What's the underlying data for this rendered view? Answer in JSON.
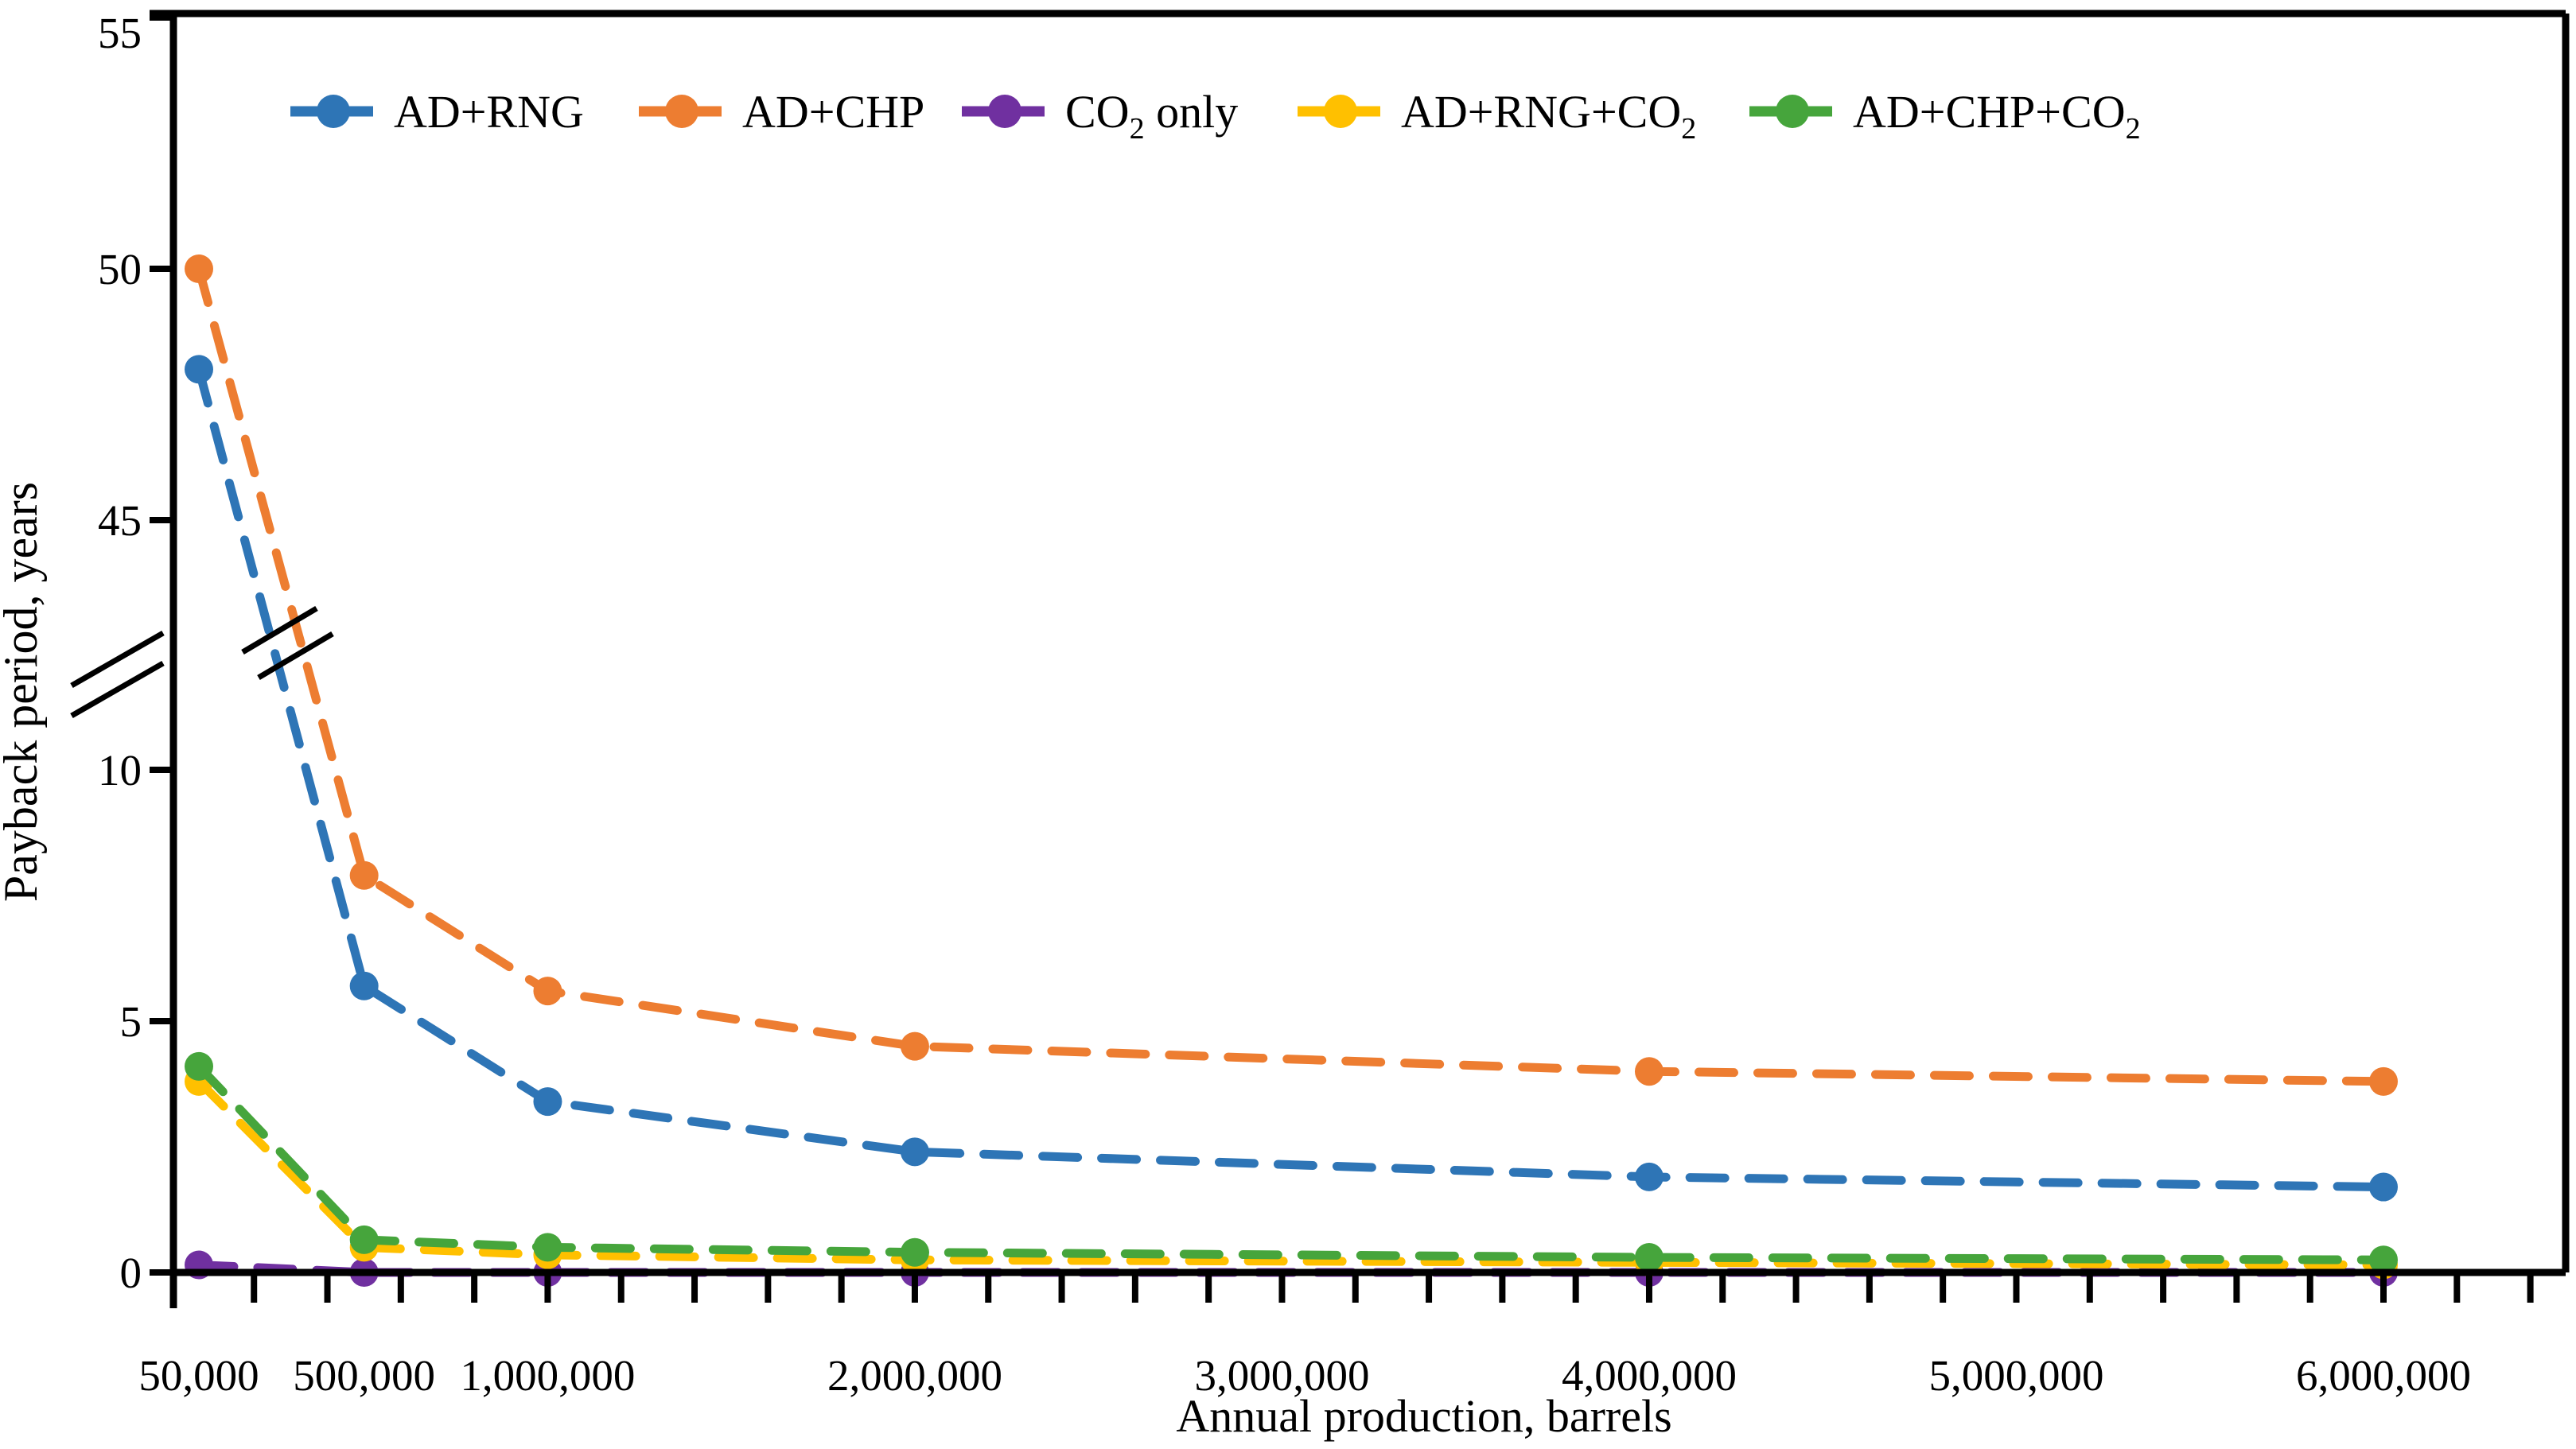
{
  "figure": {
    "background_color": "#ffffff",
    "axis_color": "#000000"
  },
  "chart_data": {
    "type": "line",
    "title": "",
    "xlabel": "Annual production,  barrels",
    "ylabel": "Payback period, years",
    "line_style": "dashed",
    "marker": "circle",
    "grid": false,
    "legend_position": "top",
    "x": [
      50000,
      500000,
      1000000,
      2000000,
      4000000,
      6000000
    ],
    "x_tick_labels": [
      {
        "value": 50000,
        "label": "50,000"
      },
      {
        "value": 500000,
        "label": "500,000"
      },
      {
        "value": 1000000,
        "label": "1,000,000"
      },
      {
        "value": 2000000,
        "label": "2,000,000"
      },
      {
        "value": 3000000,
        "label": "3,000,000"
      },
      {
        "value": 4000000,
        "label": "4,000,000"
      },
      {
        "value": 5000000,
        "label": "5,000,000"
      },
      {
        "value": 6000000,
        "label": "6,000,000"
      }
    ],
    "x_minor_tick_interval": 200000,
    "x_minor_tick_max": 6400000,
    "y_ticks": [
      0,
      5,
      10,
      45,
      50,
      55
    ],
    "y_axis_break": {
      "from": 10,
      "to": 45
    },
    "ylim_low": [
      0,
      10
    ],
    "ylim_high": [
      45,
      55
    ],
    "series": [
      {
        "name": "AD+RNG",
        "label_main": "AD+RNG",
        "label_sub": "",
        "label_tail": "",
        "color": "#2E75B6",
        "values": [
          48,
          5.7,
          3.4,
          2.4,
          1.9,
          1.7
        ]
      },
      {
        "name": "AD+CHP",
        "label_main": "AD+CHP",
        "label_sub": "",
        "label_tail": "",
        "color": "#ED7D31",
        "values": [
          50,
          7.9,
          5.6,
          4.5,
          4.0,
          3.8
        ]
      },
      {
        "name": "CO2 only",
        "label_main": "CO",
        "label_sub": "2",
        "label_tail": " only",
        "color": "#7030A0",
        "values": [
          0.15,
          0,
          0,
          0,
          0,
          0
        ]
      },
      {
        "name": "AD+RNG+CO2",
        "label_main": "AD+RNG+CO",
        "label_sub": "2",
        "label_tail": "",
        "color": "#FFC000",
        "values": [
          3.8,
          0.5,
          0.35,
          0.25,
          0.2,
          0.15
        ]
      },
      {
        "name": "AD+CHP+CO2",
        "label_main": "AD+CHP+CO",
        "label_sub": "2",
        "label_tail": "",
        "color": "#46A53C",
        "values": [
          4.1,
          0.65,
          0.5,
          0.4,
          0.3,
          0.25
        ]
      }
    ]
  }
}
